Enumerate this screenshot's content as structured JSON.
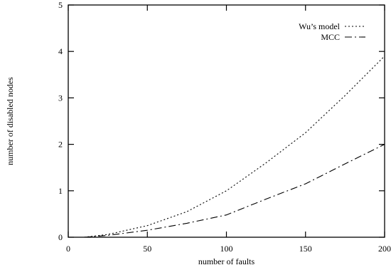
{
  "chart_data": {
    "type": "line",
    "xlabel": "number of faults",
    "ylabel": "number of disabled nodes",
    "xlim": [
      0,
      200
    ],
    "ylim": [
      0,
      5
    ],
    "xticks": [
      "0",
      "50",
      "100",
      "150",
      "200"
    ],
    "yticks": [
      "0",
      "1",
      "2",
      "3",
      "4",
      "5"
    ],
    "legend_position": "top-right",
    "grid": false,
    "series": [
      {
        "name": "Wu’s model",
        "style": "dotted",
        "color": "#000000",
        "x": [
          10,
          25,
          50,
          75,
          100,
          125,
          150,
          175,
          200
        ],
        "y": [
          0.0,
          0.06,
          0.25,
          0.55,
          1.0,
          1.6,
          2.25,
          3.05,
          3.9
        ]
      },
      {
        "name": "MCC",
        "style": "dash-dot",
        "color": "#000000",
        "x": [
          10,
          25,
          50,
          75,
          100,
          125,
          150,
          175,
          200
        ],
        "y": [
          0.0,
          0.04,
          0.15,
          0.3,
          0.48,
          0.82,
          1.15,
          1.58,
          2.0
        ]
      }
    ]
  }
}
